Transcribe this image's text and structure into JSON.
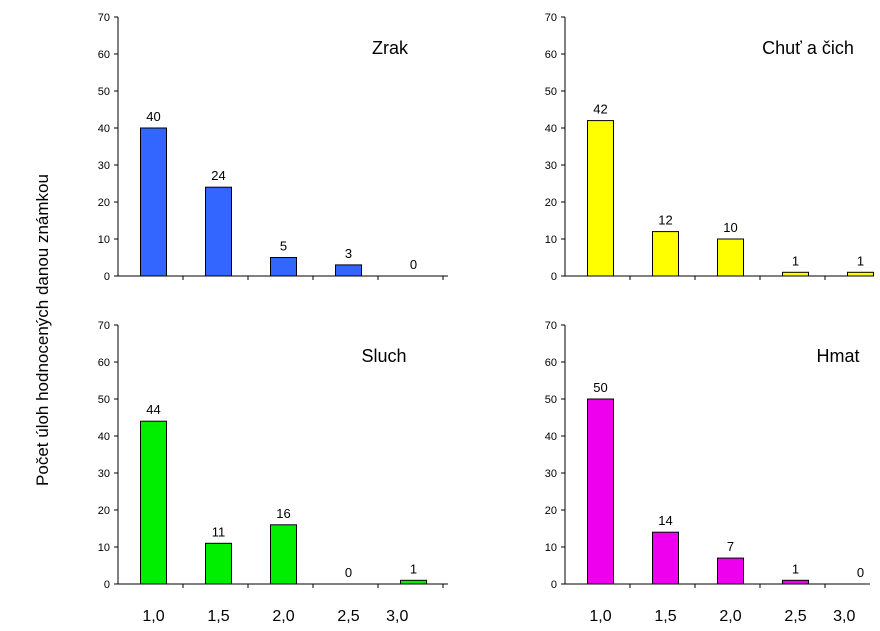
{
  "y_axis_label": "Počet úloh hodnocených danou známkou",
  "chart_data": [
    {
      "type": "bar",
      "title": "Zrak",
      "categories": [
        "1,0",
        "1,5",
        "2,0",
        "2,5",
        "3,0"
      ],
      "values": [
        40,
        24,
        5,
        3,
        0
      ],
      "ylim": [
        0,
        70
      ],
      "yticks": [
        0,
        10,
        20,
        30,
        40,
        50,
        60,
        70
      ],
      "color": "#3366ff",
      "show_x_labels": false
    },
    {
      "type": "bar",
      "title": "Chuť a čich",
      "categories": [
        "1,0",
        "1,5",
        "2,0",
        "2,5",
        "3,0"
      ],
      "values": [
        42,
        12,
        10,
        1,
        1
      ],
      "ylim": [
        0,
        70
      ],
      "yticks": [
        0,
        10,
        20,
        30,
        40,
        50,
        60,
        70
      ],
      "color": "#ffff00",
      "show_x_labels": false
    },
    {
      "type": "bar",
      "title": "Sluch",
      "categories": [
        "1,0",
        "1,5",
        "2,0",
        "2,5",
        "3,0"
      ],
      "values": [
        44,
        11,
        16,
        0,
        1
      ],
      "ylim": [
        0,
        70
      ],
      "yticks": [
        0,
        10,
        20,
        30,
        40,
        50,
        60,
        70
      ],
      "color": "#00ee00",
      "show_x_labels": true
    },
    {
      "type": "bar",
      "title": "Hmat",
      "categories": [
        "1,0",
        "1,5",
        "2,0",
        "2,5",
        "3,0"
      ],
      "values": [
        50,
        14,
        7,
        1,
        0
      ],
      "ylim": [
        0,
        70
      ],
      "yticks": [
        0,
        10,
        20,
        30,
        40,
        50,
        60,
        70
      ],
      "color": "#ee00ee",
      "show_x_labels": true
    }
  ]
}
